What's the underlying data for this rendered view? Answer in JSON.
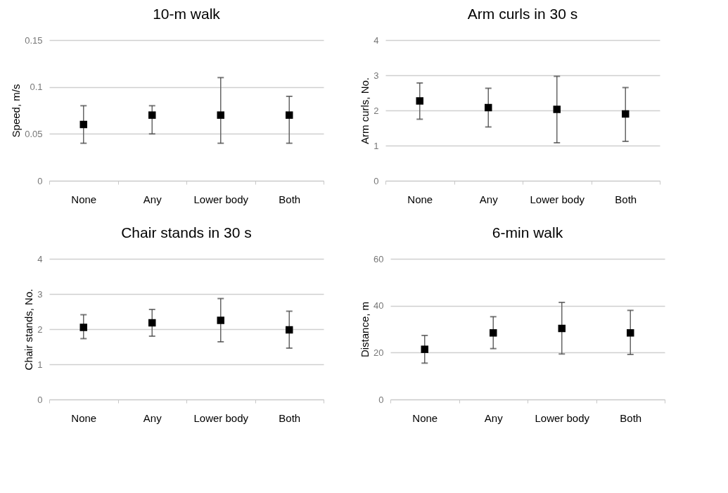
{
  "chart_data": [
    {
      "type": "scatter",
      "title": "10-m walk",
      "ylabel": "Speed, m/s",
      "categories": [
        "None",
        "Any",
        "Lower body",
        "Both"
      ],
      "series": [
        {
          "color": "#000000",
          "values": [
            0.06,
            0.07,
            0.07,
            0.07
          ],
          "errors": [
            [
              0.04,
              0.08
            ],
            [
              0.05,
              0.08
            ],
            [
              0.04,
              0.11
            ],
            [
              0.04,
              0.09
            ]
          ]
        }
      ],
      "ylim": [
        0,
        0.15
      ],
      "yticks": [
        0,
        0.05,
        0.1,
        0.15
      ],
      "grid": "y",
      "marker": "square",
      "legend": false
    },
    {
      "type": "scatter",
      "title": "Arm curls in 30 s",
      "ylabel": "Arm curls, No.",
      "categories": [
        "None",
        "Any",
        "Lower body",
        "Both"
      ],
      "series": [
        {
          "color": "#000000",
          "values": [
            2.27,
            2.08,
            2.03,
            1.9
          ],
          "errors": [
            [
              1.75,
              2.78
            ],
            [
              1.53,
              2.63
            ],
            [
              1.08,
              2.97
            ],
            [
              1.12,
              2.65
            ]
          ]
        }
      ],
      "ylim": [
        0,
        4
      ],
      "yticks": [
        0,
        1,
        2,
        3,
        4
      ],
      "grid": "y",
      "marker": "square",
      "legend": false
    },
    {
      "type": "scatter",
      "title": "Chair stands in 30 s",
      "ylabel": "Chair stands, No.",
      "categories": [
        "None",
        "Any",
        "Lower body",
        "Both"
      ],
      "series": [
        {
          "color": "#000000",
          "values": [
            2.05,
            2.18,
            2.25,
            1.98
          ],
          "errors": [
            [
              1.73,
              2.41
            ],
            [
              1.8,
              2.56
            ],
            [
              1.64,
              2.87
            ],
            [
              1.46,
              2.51
            ]
          ]
        }
      ],
      "ylim": [
        0,
        4
      ],
      "yticks": [
        0,
        1,
        2,
        3,
        4
      ],
      "grid": "y",
      "marker": "square",
      "legend": false
    },
    {
      "type": "scatter",
      "title": "6-min walk",
      "ylabel": "Distance, m",
      "categories": [
        "None",
        "Any",
        "Lower body",
        "Both"
      ],
      "series": [
        {
          "color": "#000000",
          "values": [
            21.4,
            28.4,
            30.3,
            28.4
          ],
          "errors": [
            [
              15.5,
              27.3
            ],
            [
              21.7,
              35.3
            ],
            [
              19.4,
              41.4
            ],
            [
              19.2,
              38.0
            ]
          ]
        }
      ],
      "ylim": [
        0,
        60
      ],
      "yticks": [
        0,
        20,
        40,
        60
      ],
      "grid": "y",
      "marker": "square",
      "legend": false
    }
  ]
}
